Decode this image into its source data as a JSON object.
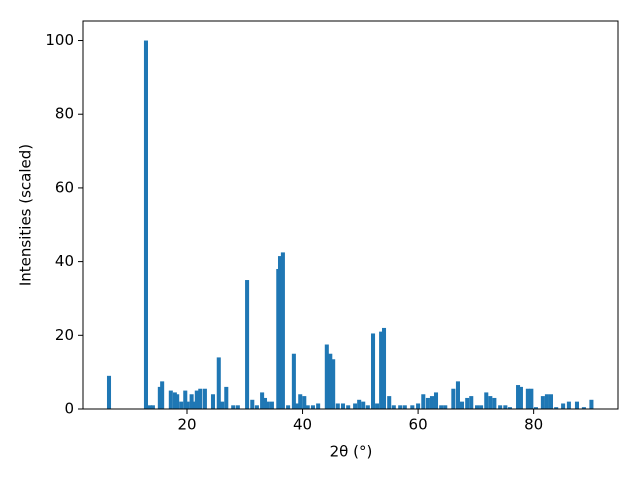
{
  "chart_data": {
    "type": "bar",
    "xlabel": "2θ (°)",
    "ylabel": "Intensities (scaled)",
    "color": "#1f77b4",
    "x": [
      6.5,
      12.9,
      13.6,
      14.1,
      15.3,
      15.7,
      17.2,
      17.9,
      18.3,
      19.0,
      19.7,
      20.1,
      20.8,
      21.4,
      21.7,
      22.3,
      23.1,
      24.5,
      25.5,
      26.1,
      26.8,
      28.0,
      28.8,
      30.4,
      31.3,
      32.1,
      33.0,
      33.5,
      34.0,
      34.7,
      35.8,
      36.1,
      36.6,
      37.5,
      38.5,
      39.0,
      39.6,
      40.3,
      40.9,
      41.8,
      42.7,
      44.2,
      44.8,
      45.3,
      46.1,
      47.0,
      47.9,
      49.1,
      49.8,
      50.5,
      51.3,
      52.2,
      52.9,
      53.6,
      54.1,
      55.0,
      55.8,
      56.9,
      57.7,
      59.0,
      60.0,
      60.9,
      61.7,
      62.4,
      63.1,
      64.0,
      64.7,
      66.1,
      66.9,
      67.6,
      68.5,
      69.2,
      70.2,
      70.9,
      71.8,
      72.5,
      73.2,
      74.2,
      75.1,
      75.9,
      77.3,
      77.8,
      79.0,
      79.6,
      80.4,
      81.6,
      82.3,
      83.0,
      83.9,
      85.1,
      86.1,
      87.5,
      88.7,
      90.0
    ],
    "values": [
      9,
      100,
      1,
      1,
      6,
      7.5,
      5,
      4.5,
      4,
      2,
      5,
      2,
      4,
      2,
      5,
      5.5,
      5.5,
      4,
      14,
      2,
      6,
      1,
      1,
      35,
      2.5,
      1,
      4.5,
      3,
      2,
      2,
      38,
      41.5,
      42.5,
      1,
      15,
      1.5,
      4,
      3.5,
      1,
      1,
      1.5,
      17.5,
      15,
      13.5,
      1.5,
      1.5,
      1,
      1.5,
      2.5,
      2,
      1,
      20.5,
      1.5,
      21,
      22,
      3.5,
      1,
      1,
      1,
      1,
      1.5,
      4,
      3,
      3.5,
      4.5,
      1,
      1,
      5.5,
      7.5,
      2,
      3,
      3.5,
      1,
      1,
      4.5,
      3.5,
      3,
      1,
      1,
      0.5,
      6.5,
      6,
      5.5,
      5.5,
      0.5,
      3.5,
      4,
      4,
      0.5,
      1.5,
      2,
      2,
      0.5,
      2.5
    ],
    "xlim": [
      2,
      94.6
    ],
    "ylim": [
      0,
      105.3
    ],
    "xticks": [
      20,
      40,
      60,
      80
    ],
    "yticks": [
      0,
      20,
      40,
      60,
      80,
      100
    ]
  }
}
